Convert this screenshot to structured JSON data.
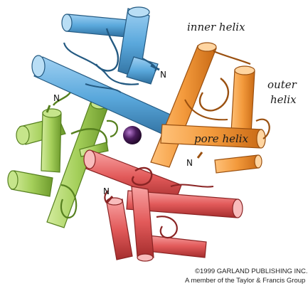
{
  "labels": {
    "inner_helix": "inner helix",
    "outer_helix_line1": "outer",
    "outer_helix_line2": "helix",
    "pore_helix": "pore helix",
    "n_terminus": "N"
  },
  "credit": {
    "line1": "©1999 GARLAND PUBLISHING INC.",
    "line2": "A member of the Taylor & Francis Group"
  },
  "colors": {
    "blue_subunit": "#5aa8dc",
    "orange_subunit": "#f39a3c",
    "green_subunit": "#a4cf5a",
    "red_subunit": "#e25a5a",
    "ion": "#4a1c5c"
  }
}
